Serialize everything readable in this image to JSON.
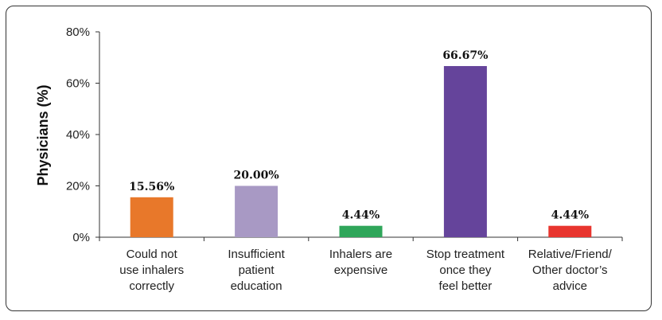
{
  "chart_data": {
    "type": "bar",
    "title": "",
    "xlabel": "",
    "ylabel": "Physicians (%)",
    "ylim": [
      0,
      80
    ],
    "yticks": [
      "0%",
      "20%",
      "40%",
      "60%",
      "80%"
    ],
    "ytick_values": [
      0,
      20,
      40,
      60,
      80
    ],
    "categories": [
      [
        "Could not",
        "use inhalers",
        "correctly"
      ],
      [
        "Insufficient",
        "patient",
        "education"
      ],
      [
        "Inhalers are",
        "expensive"
      ],
      [
        "Stop treatment",
        "once they",
        "feel better"
      ],
      [
        "Relative/Friend/",
        "Other doctor’s",
        "advice"
      ]
    ],
    "values": [
      15.56,
      20.0,
      4.44,
      66.67,
      4.44
    ],
    "data_labels": [
      "15.56%",
      "20.00%",
      "4.44%",
      "66.67%",
      "4.44%"
    ],
    "colors": [
      "#e8782a",
      "#a899c4",
      "#2fa65a",
      "#65449b",
      "#e8352e"
    ],
    "grid": false,
    "legend": "none"
  }
}
